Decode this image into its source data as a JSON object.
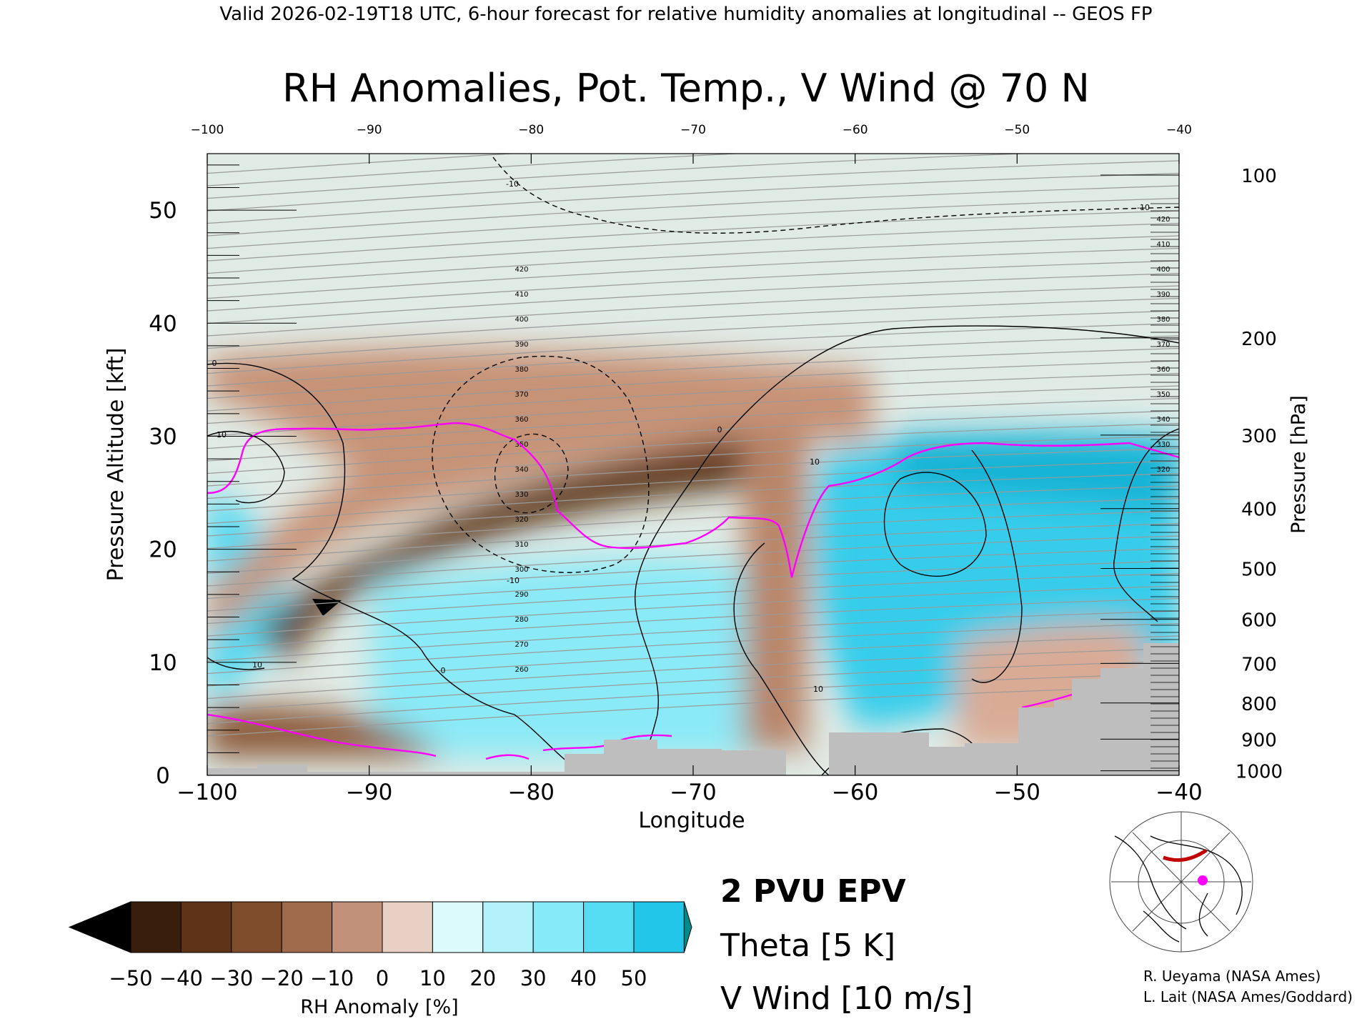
{
  "header": "Valid 2026-02-19T18 UTC, 6-hour forecast for relative humidity anomalies at longitudinal -- GEOS FP",
  "chart_data": {
    "type": "heatmap",
    "title": "RH Anomalies, Pot. Temp., V Wind @ 70 N",
    "xlabel": "Longitude",
    "ylabel_left": "Pressure Altitude [kft]",
    "ylabel_right": "Pressure [hPa]",
    "xlim": [
      -100,
      -40
    ],
    "ylim": [
      0,
      55
    ],
    "x_ticks": [
      -100,
      -90,
      -80,
      -70,
      -60,
      -50,
      -40
    ],
    "x_tick_labels": [
      "−100",
      "−90",
      "−80",
      "−70",
      "−60",
      "−50",
      "−40"
    ],
    "x_top_tick_labels": [
      "−100",
      "−90",
      "−80",
      "−70",
      "−60",
      "−50",
      "−40"
    ],
    "y_ticks": [
      0,
      10,
      20,
      30,
      40,
      50
    ],
    "y_tick_labels": [
      "0",
      "10",
      "20",
      "30",
      "40",
      "50"
    ],
    "pressure_ticks": [
      {
        "label": "100",
        "kft": 53.1
      },
      {
        "label": "200",
        "kft": 38.7
      },
      {
        "label": "300",
        "kft": 30.1
      },
      {
        "label": "400",
        "kft": 23.6
      },
      {
        "label": "500",
        "kft": 18.3
      },
      {
        "label": "600",
        "kft": 13.8
      },
      {
        "label": "700",
        "kft": 9.9
      },
      {
        "label": "800",
        "kft": 6.4
      },
      {
        "label": "900",
        "kft": 3.2
      },
      {
        "label": "1000",
        "kft": 0.4
      }
    ],
    "colorbar": {
      "label": "RH Anomaly [%]",
      "tick_labels": [
        "−50",
        "−40",
        "−30",
        "−20",
        "−10",
        "0",
        "10",
        "20",
        "30",
        "40",
        "50"
      ],
      "colors": [
        "#3a1e0c",
        "#5e3317",
        "#7f4c2b",
        "#9f6b4c",
        "#c1917a",
        "#e6cfc3",
        "#dcfafc",
        "#b2f3fb",
        "#86eaf8",
        "#56dcf3",
        "#22c6e8"
      ],
      "low_color": "#000000",
      "high_color": "#008b8b"
    },
    "theta_labels": [
      "260",
      "270",
      "280",
      "290",
      "300",
      "310",
      "320",
      "330",
      "340",
      "350",
      "360",
      "370",
      "380",
      "390",
      "400",
      "410",
      "420"
    ],
    "vwind_labels": [
      "0",
      "10",
      "-10"
    ],
    "legend": [
      {
        "label": "2 PVU EPV",
        "color": "#ff00ff"
      },
      {
        "label": "Theta [5 K]",
        "color": "#a8a8a8"
      },
      {
        "label": "V Wind [10 m/s]",
        "color": "#000000"
      }
    ],
    "terrain_color": "#bebebe",
    "epv_color": "#ff00ff"
  },
  "credits": [
    "R. Ueyama (NASA Ames)",
    "L. Lait (NASA Ames/Goddard)"
  ]
}
